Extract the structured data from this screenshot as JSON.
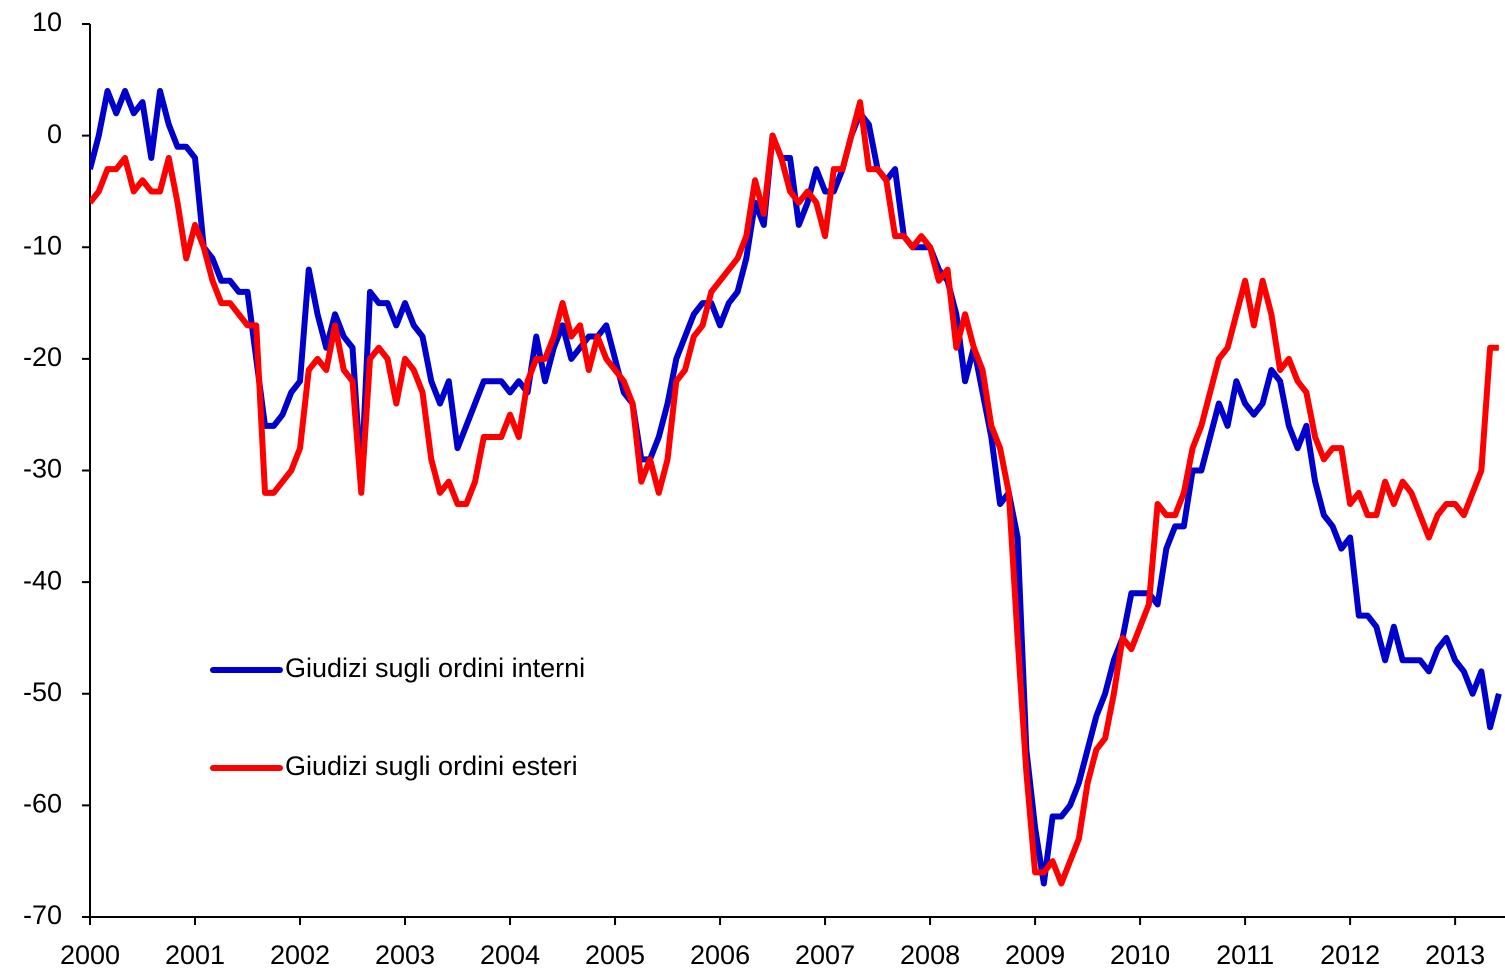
{
  "chart_data": {
    "type": "line",
    "categories": [
      "2000",
      null,
      null,
      null,
      null,
      null,
      null,
      null,
      null,
      null,
      null,
      null,
      "2001",
      null,
      null,
      null,
      null,
      null,
      null,
      null,
      null,
      null,
      null,
      null,
      "2002",
      null,
      null,
      null,
      null,
      null,
      null,
      null,
      null,
      null,
      null,
      null,
      "2003",
      null,
      null,
      null,
      null,
      null,
      null,
      null,
      null,
      null,
      null,
      null,
      "2004",
      null,
      null,
      null,
      null,
      null,
      null,
      null,
      null,
      null,
      null,
      null,
      "2005",
      null,
      null,
      null,
      null,
      null,
      null,
      null,
      null,
      null,
      null,
      null,
      "2006",
      null,
      null,
      null,
      null,
      null,
      null,
      null,
      null,
      null,
      null,
      null,
      "2007",
      null,
      null,
      null,
      null,
      null,
      null,
      null,
      null,
      null,
      null,
      null,
      "2008",
      null,
      null,
      null,
      null,
      null,
      null,
      null,
      null,
      null,
      null,
      null,
      "2009",
      null,
      null,
      null,
      null,
      null,
      null,
      null,
      null,
      null,
      null,
      null,
      "2010",
      null,
      null,
      null,
      null,
      null,
      null,
      null,
      null,
      null,
      null,
      null,
      "2011",
      null,
      null,
      null,
      null,
      null,
      null,
      null,
      null,
      null,
      null,
      null,
      "2012",
      null,
      null,
      null,
      null,
      null,
      null,
      null,
      null,
      null,
      null,
      null,
      "2013",
      null,
      null,
      null,
      null,
      null
    ],
    "series": [
      {
        "name": "Giudizi sugli ordini interni",
        "color": "#0000cc",
        "values": [
          -3,
          0,
          4,
          2,
          4,
          2,
          3,
          -2,
          4,
          1,
          -1,
          -1,
          -2,
          -10,
          -11,
          -13,
          -13,
          -14,
          -14,
          -20,
          -26,
          -26,
          -25,
          -23,
          -22,
          -12,
          -16,
          -19,
          -16,
          -18,
          -19,
          -31,
          -14,
          -15,
          -15,
          -17,
          -15,
          -17,
          -18,
          -22,
          -24,
          -22,
          -28,
          -26,
          -24,
          -22,
          -22,
          -22,
          -23,
          -22,
          -23,
          -18,
          -22,
          -19,
          -17,
          -20,
          -19,
          -18,
          -18,
          -17,
          -20,
          -23,
          -24,
          -29,
          -29,
          -27,
          -24,
          -20,
          -18,
          -16,
          -15,
          -15,
          -17,
          -15,
          -14,
          -11,
          -6,
          -8,
          0,
          -2,
          -2,
          -8,
          -6,
          -3,
          -5,
          -5,
          -3,
          0,
          2,
          1,
          -3,
          -4,
          -3,
          -9,
          -10,
          -10,
          -10,
          -12,
          -13,
          -16,
          -22,
          -19,
          -23,
          -27,
          -33,
          -32,
          -36,
          -55,
          -62,
          -67,
          -61,
          -61,
          -60,
          -58,
          -55,
          -52,
          -50,
          -47,
          -45,
          -41,
          -41,
          -41,
          -42,
          -37,
          -35,
          -35,
          -30,
          -30,
          -27,
          -24,
          -26,
          -22,
          -24,
          -25,
          -24,
          -21,
          -22,
          -26,
          -28,
          -26,
          -31,
          -34,
          -35,
          -37,
          -36,
          -43,
          -43,
          -44,
          -47,
          -44,
          -47,
          -47,
          -47,
          -48,
          -46,
          -45,
          -47,
          -48,
          -50,
          -48,
          -53,
          -50
        ]
      },
      {
        "name": "Giudizi sugli ordini esteri",
        "color": "#ff0000",
        "values": [
          -6,
          -5,
          -3,
          -3,
          -2,
          -5,
          -4,
          -5,
          -5,
          -2,
          -6,
          -11,
          -8,
          -10,
          -13,
          -15,
          -15,
          -16,
          -17,
          -17,
          -32,
          -32,
          -31,
          -30,
          -28,
          -21,
          -20,
          -21,
          -17,
          -21,
          -22,
          -32,
          -20,
          -19,
          -20,
          -24,
          -20,
          -21,
          -23,
          -29,
          -32,
          -31,
          -33,
          -33,
          -31,
          -27,
          -27,
          -27,
          -25,
          -27,
          -22,
          -20,
          -20,
          -18,
          -15,
          -18,
          -17,
          -21,
          -18,
          -20,
          -21,
          -22,
          -24,
          -31,
          -29,
          -32,
          -29,
          -22,
          -21,
          -18,
          -17,
          -14,
          -13,
          -12,
          -11,
          -9,
          -4,
          -7,
          0,
          -2,
          -5,
          -6,
          -5,
          -6,
          -9,
          -3,
          -3,
          0,
          3,
          -3,
          -3,
          -4,
          -9,
          -9,
          -10,
          -9,
          -10,
          -13,
          -12,
          -19,
          -16,
          -19,
          -21,
          -26,
          -28,
          -32,
          -45,
          -57,
          -66,
          -66,
          -65,
          -67,
          -65,
          -63,
          -58,
          -55,
          -54,
          -50,
          -45,
          -46,
          -44,
          -42,
          -33,
          -34,
          -34,
          -32,
          -28,
          -26,
          -23,
          -20,
          -19,
          -16,
          -13,
          -17,
          -13,
          -16,
          -21,
          -20,
          -22,
          -23,
          -27,
          -29,
          -28,
          -28,
          -33,
          -32,
          -34,
          -34,
          -31,
          -33,
          -31,
          -32,
          -34,
          -36,
          -34,
          -33,
          -33,
          -34,
          -32,
          -30,
          -19,
          -19
        ]
      }
    ],
    "ylim": [
      -70,
      10
    ],
    "yticks": [
      -70,
      -60,
      -50,
      -40,
      -30,
      -20,
      -10,
      0,
      10
    ]
  }
}
